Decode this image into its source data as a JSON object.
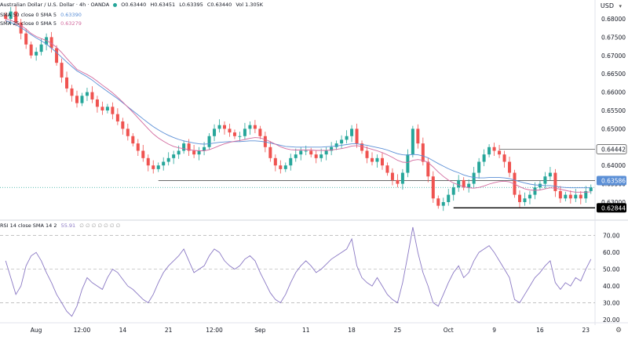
{
  "header": {
    "symbol_line": "Australian Dollar / U.S. Dollar · 4h · OANDA",
    "ohlc": [
      "O0.63440",
      "H0.63451",
      "L0.63395",
      "C0.63440",
      "Vol 1.305K"
    ],
    "sma50_label": "SMA 50 close 0 SMA 5",
    "sma50_value": "0.63390",
    "sma25_label": "SMA 25 close 0 SMA 5",
    "sma25_value": "0.63279",
    "rsi_label": "RSI 14 close SMA 14 2",
    "rsi_value": "55.91",
    "rsi_extra": "∅ ∅ ∅ ∅ ∅ ∅ ∅",
    "currency": "USD"
  },
  "colors": {
    "up": "#26a69a",
    "down": "#ef5350",
    "sma50": "#5b8fd6",
    "sma25": "#d26a9e",
    "rsi": "#8a78c4",
    "axis_text": "#131722",
    "grid_dash": "#9e9e9e"
  },
  "chart_data": [
    {
      "type": "candlestick",
      "title": "Australian Dollar / U.S. Dollar · 4h · OANDA",
      "ylim": [
        0.627,
        0.683
      ],
      "y_ticks": [
        "0.68000",
        "0.67500",
        "0.67000",
        "0.66500",
        "0.66000",
        "0.65500",
        "0.65000",
        "0.64500",
        "0.64000",
        "0.63500",
        "0.63000"
      ],
      "x_ticks": [
        "Aug",
        "12:00",
        "14",
        "21",
        "12:00",
        "Sep",
        "11",
        "18",
        "25",
        "Oct",
        "9",
        "16",
        "23"
      ],
      "x_tick_index": [
        6,
        15,
        23,
        32,
        41,
        50,
        59,
        68,
        77,
        87,
        96,
        105,
        114
      ],
      "close_series": [
        0.68,
        0.682,
        0.679,
        0.676,
        0.673,
        0.67,
        0.671,
        0.673,
        0.675,
        0.672,
        0.668,
        0.664,
        0.661,
        0.659,
        0.657,
        0.659,
        0.66,
        0.658,
        0.656,
        0.655,
        0.656,
        0.654,
        0.652,
        0.65,
        0.648,
        0.646,
        0.644,
        0.642,
        0.64,
        0.639,
        0.64,
        0.641,
        0.642,
        0.643,
        0.644,
        0.646,
        0.644,
        0.643,
        0.644,
        0.645,
        0.648,
        0.65,
        0.651,
        0.65,
        0.649,
        0.648,
        0.648,
        0.65,
        0.651,
        0.65,
        0.648,
        0.645,
        0.642,
        0.64,
        0.639,
        0.64,
        0.642,
        0.643,
        0.644,
        0.644,
        0.643,
        0.642,
        0.643,
        0.644,
        0.645,
        0.646,
        0.647,
        0.648,
        0.65,
        0.646,
        0.644,
        0.642,
        0.641,
        0.642,
        0.64,
        0.638,
        0.636,
        0.635,
        0.638,
        0.643,
        0.65,
        0.646,
        0.641,
        0.637,
        0.631,
        0.629,
        0.63,
        0.632,
        0.634,
        0.636,
        0.634,
        0.635,
        0.638,
        0.641,
        0.643,
        0.645,
        0.644,
        0.643,
        0.641,
        0.638,
        0.632,
        0.63,
        0.631,
        0.632,
        0.634,
        0.635,
        0.637,
        0.638,
        0.633,
        0.631,
        0.632,
        0.631,
        0.632,
        0.631,
        0.633,
        0.634
      ],
      "levels": [
        {
          "label": "0.64442",
          "value": 0.64442,
          "start_index": 97
        },
        {
          "label": "0.63586",
          "value": 0.63586,
          "start_index": 30
        },
        {
          "label": "0.62844",
          "value": 0.62844,
          "start_index": 88
        }
      ],
      "current_price_line": 0.634,
      "sma50": [
        0.6795,
        0.679,
        0.6784,
        0.6776,
        0.6767,
        0.6757,
        0.6748,
        0.674,
        0.6731,
        0.672,
        0.6708,
        0.6695,
        0.6682,
        0.667,
        0.6658,
        0.665,
        0.6642,
        0.6633,
        0.6622,
        0.6612,
        0.6602,
        0.6592,
        0.6582,
        0.6571,
        0.656,
        0.6549,
        0.6538,
        0.6527,
        0.6516,
        0.6506,
        0.6497,
        0.6489,
        0.6482,
        0.6476,
        0.6471,
        0.6467,
        0.6464,
        0.6461,
        0.6459,
        0.6458,
        0.6459,
        0.6461,
        0.6463,
        0.6464,
        0.6465,
        0.6465,
        0.6465,
        0.6466,
        0.6467,
        0.6467,
        0.6466,
        0.6464,
        0.6461,
        0.6458,
        0.6455,
        0.6452,
        0.6451,
        0.645,
        0.645,
        0.645,
        0.645,
        0.645,
        0.645,
        0.6451,
        0.6452,
        0.6453,
        0.6455,
        0.6457,
        0.6459,
        0.6459,
        0.6457,
        0.6455,
        0.6452,
        0.6449,
        0.6446,
        0.6442,
        0.6437,
        0.6432,
        0.6429,
        0.6428,
        0.643,
        0.6429,
        0.6426,
        0.6421,
        0.6413,
        0.6405,
        0.6398,
        0.6391,
        0.6385,
        0.638,
        0.6374,
        0.637,
        0.6367,
        0.6366,
        0.6366,
        0.6367,
        0.6367,
        0.6367,
        0.6366,
        0.6364,
        0.636,
        0.6356,
        0.6352,
        0.6349,
        0.6347,
        0.6346,
        0.6345,
        0.6345,
        0.6343,
        0.6341,
        0.634,
        0.6339,
        0.6339,
        0.6339,
        0.6339,
        0.6339
      ],
      "sma25": [
        0.68,
        0.6796,
        0.679,
        0.6782,
        0.6772,
        0.676,
        0.6752,
        0.6746,
        0.6741,
        0.6733,
        0.6722,
        0.6708,
        0.6692,
        0.6677,
        0.6662,
        0.6655,
        0.6648,
        0.664,
        0.663,
        0.6619,
        0.6609,
        0.6598,
        0.6586,
        0.6573,
        0.6559,
        0.6545,
        0.653,
        0.6515,
        0.65,
        0.6486,
        0.6475,
        0.6466,
        0.6458,
        0.6452,
        0.6448,
        0.6446,
        0.6443,
        0.6441,
        0.644,
        0.644,
        0.6443,
        0.6448,
        0.6454,
        0.6459,
        0.6463,
        0.6466,
        0.6468,
        0.6471,
        0.6474,
        0.6476,
        0.6475,
        0.6471,
        0.6465,
        0.6458,
        0.6451,
        0.6446,
        0.6443,
        0.6442,
        0.6442,
        0.6442,
        0.6442,
        0.6441,
        0.6441,
        0.6441,
        0.6442,
        0.6444,
        0.6446,
        0.6449,
        0.6453,
        0.6454,
        0.6452,
        0.6448,
        0.6444,
        0.644,
        0.6435,
        0.6429,
        0.6422,
        0.6414,
        0.6409,
        0.6408,
        0.6414,
        0.6416,
        0.6414,
        0.6408,
        0.6396,
        0.6382,
        0.637,
        0.636,
        0.6352,
        0.6347,
        0.6342,
        0.6339,
        0.6338,
        0.634,
        0.6344,
        0.6349,
        0.6353,
        0.6356,
        0.6357,
        0.6355,
        0.6349,
        0.6342,
        0.6336,
        0.6333,
        0.6332,
        0.6333,
        0.6336,
        0.6339,
        0.6338,
        0.6335,
        0.6332,
        0.6329,
        0.6327,
        0.6327,
        0.6327,
        0.6328
      ]
    },
    {
      "type": "line",
      "title": "RSI 14 close SMA 14 2",
      "ylim": [
        20,
        75
      ],
      "y_ticks": [
        "70.00",
        "60.00",
        "50.00",
        "40.00",
        "30.00",
        "20.00"
      ],
      "bands": [
        70,
        50,
        30
      ],
      "values": [
        55,
        45,
        35,
        40,
        52,
        58,
        60,
        55,
        48,
        42,
        35,
        30,
        25,
        22,
        28,
        38,
        45,
        42,
        40,
        38,
        45,
        50,
        48,
        44,
        40,
        38,
        35,
        32,
        30,
        35,
        42,
        48,
        52,
        55,
        58,
        62,
        55,
        48,
        50,
        52,
        58,
        62,
        60,
        55,
        52,
        50,
        52,
        56,
        58,
        55,
        48,
        42,
        36,
        32,
        30,
        35,
        42,
        48,
        52,
        55,
        52,
        48,
        50,
        53,
        56,
        58,
        60,
        62,
        68,
        52,
        45,
        42,
        40,
        45,
        40,
        35,
        32,
        30,
        42,
        58,
        75,
        60,
        48,
        40,
        30,
        28,
        35,
        42,
        48,
        52,
        45,
        48,
        55,
        60,
        62,
        64,
        60,
        55,
        50,
        45,
        32,
        30,
        35,
        40,
        45,
        48,
        52,
        55,
        42,
        38,
        42,
        40,
        45,
        43,
        50,
        56
      ]
    }
  ]
}
